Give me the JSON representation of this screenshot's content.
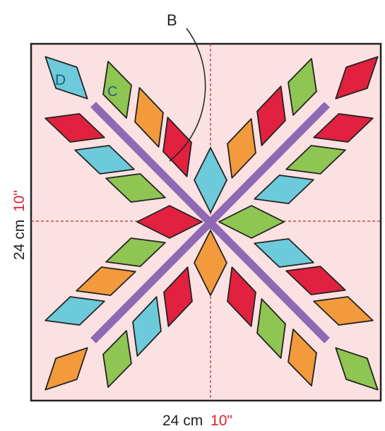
{
  "labels": {
    "b": "B",
    "c": "C",
    "d": "D"
  },
  "dimensions": {
    "bottom_value": "24 cm",
    "bottom_inches": "10\"",
    "left_value": "24 cm",
    "left_inches": "10\""
  },
  "colors": {
    "block_fill": "#fbe1e1",
    "outline": "#222222",
    "red": "#e1213f",
    "green": "#8fc552",
    "blue": "#6dcadb",
    "orange": "#f29a3c",
    "stem": "#9068b4",
    "inch_text": "#e02030",
    "label_text": "#1f5f7a",
    "dim_text": "#222222"
  }
}
